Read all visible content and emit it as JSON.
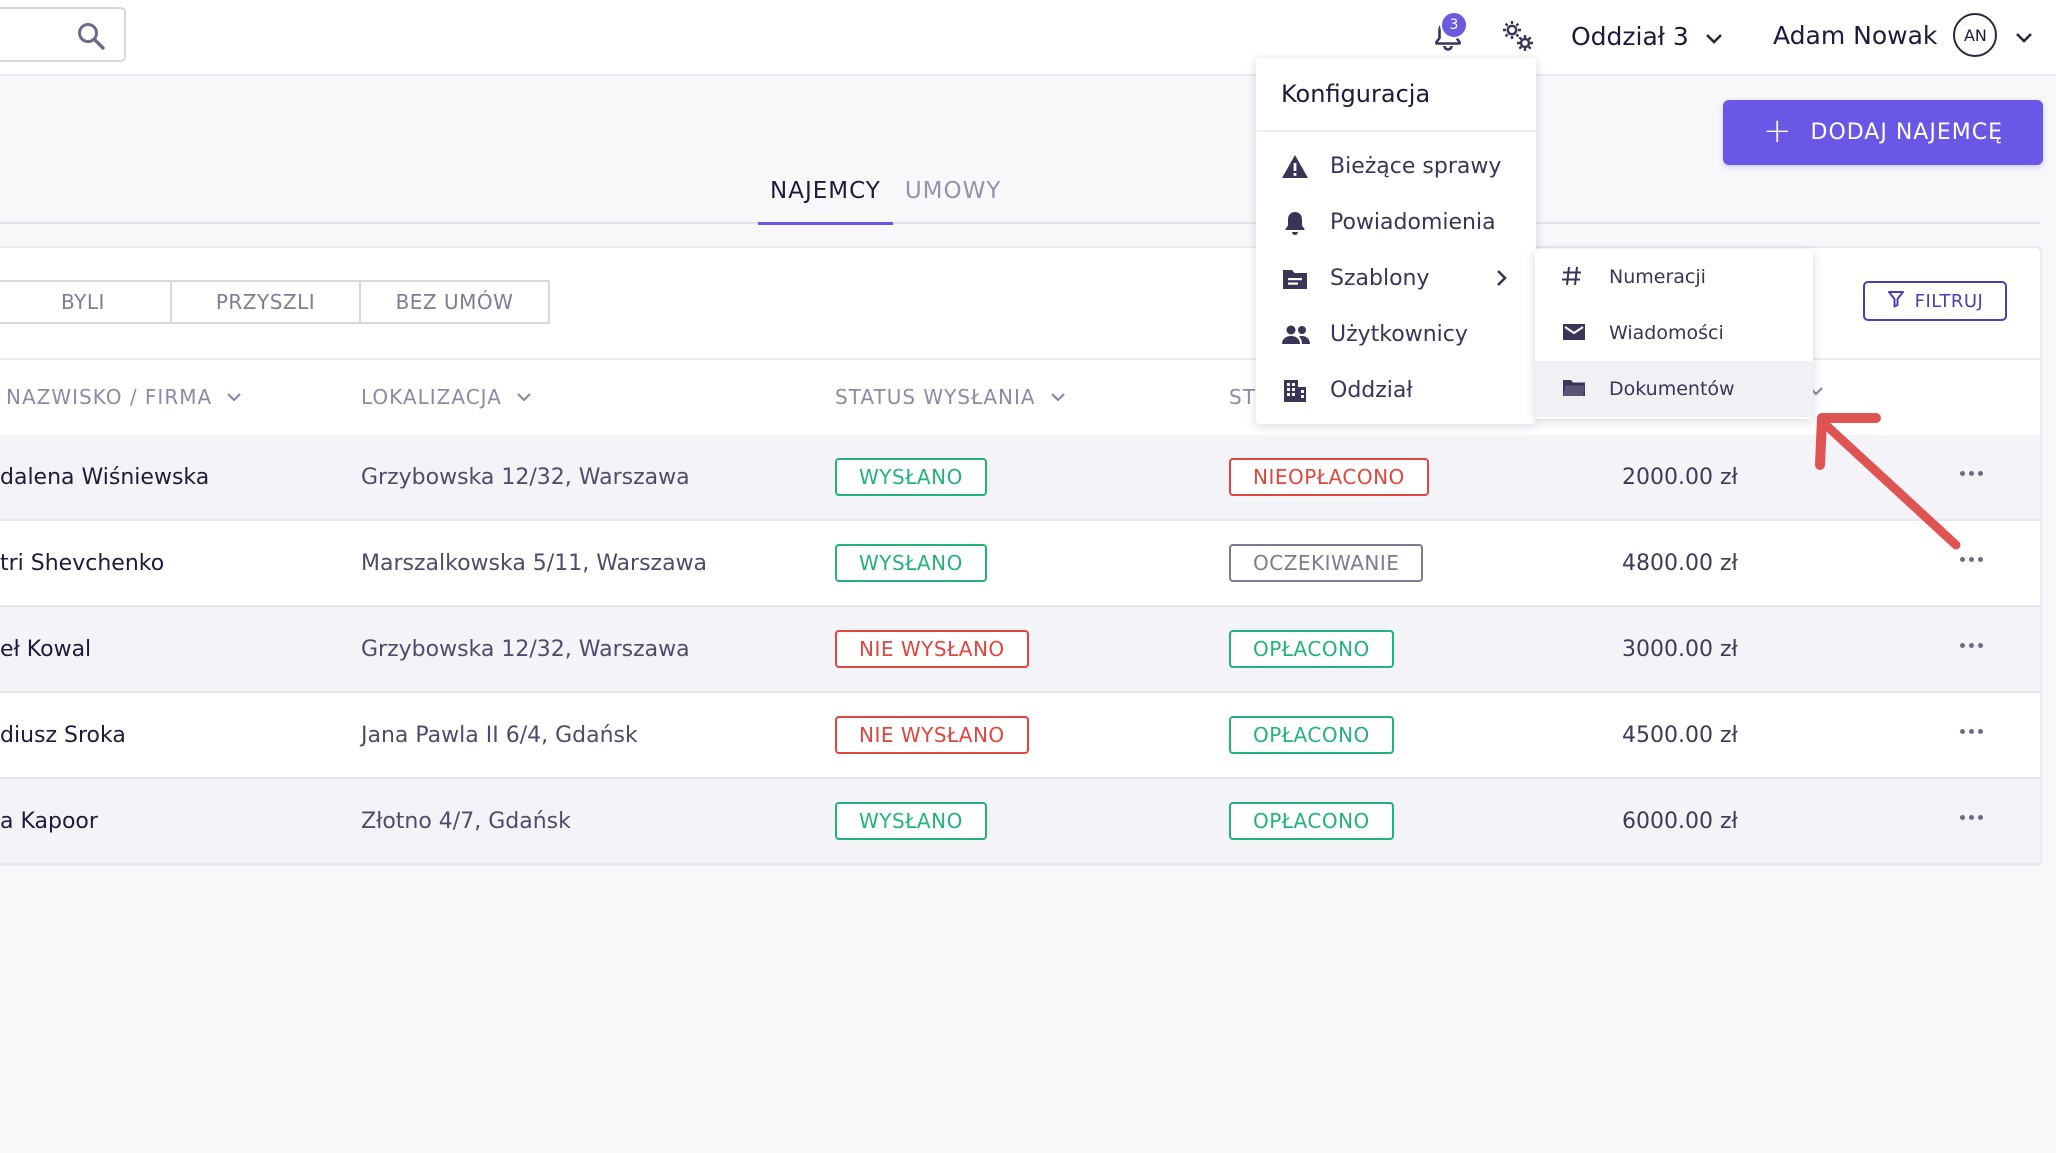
{
  "topbar": {
    "search": {
      "value": "",
      "placeholder": ""
    },
    "notifications_count": "3",
    "branch": "Oddział 3",
    "user_name": "Adam Nowak",
    "user_initials": "AN"
  },
  "add_button_label": "DODAJ NAJEMCĘ",
  "tabs": [
    {
      "label": "NAJEMCY",
      "active": true
    },
    {
      "label": "UMOWY",
      "active": false
    }
  ],
  "segments": [
    "BYLI",
    "PRZYSZLI",
    "BEZ UMÓW"
  ],
  "filter_label": "FILTRUJ",
  "columns": {
    "name": "NAZWISKO / FIRMA",
    "location": "LOKALIZACJA",
    "send_status": "STATUS WYSŁANIA",
    "payment_status_partial": "ST"
  },
  "rows": [
    {
      "name": "dalena Wiśniewska",
      "location": "Grzybowska 12/32, Warszawa",
      "send_status": "WYSŁANO",
      "payment_status": "NIEOPŁACONO",
      "amount": "2000.00 zł"
    },
    {
      "name": "tri Shevchenko",
      "location": "Marszalkowska 5/11, Warszawa",
      "send_status": "WYSŁANO",
      "payment_status": "OCZEKIWANIE",
      "amount": "4800.00 zł"
    },
    {
      "name": "eł Kowal",
      "location": "Grzybowska 12/32, Warszawa",
      "send_status": "NIE WYSŁANO",
      "payment_status": "OPŁACONO",
      "amount": "3000.00 zł"
    },
    {
      "name": "diusz Sroka",
      "location": "Jana Pawla II 6/4, Gdańsk",
      "send_status": "NIE WYSŁANO",
      "payment_status": "OPŁACONO",
      "amount": "4500.00 zł"
    },
    {
      "name": "a Kapoor",
      "location": "Złotno 4/7, Gdańsk",
      "send_status": "WYSŁANO",
      "payment_status": "OPŁACONO",
      "amount": "6000.00 zł"
    }
  ],
  "config_menu": {
    "title": "Konfiguracja",
    "items": [
      "Bieżące sprawy",
      "Powiadomienia",
      "Szablony",
      "Użytkownicy",
      "Oddział"
    ]
  },
  "templates_submenu": {
    "items": [
      "Numeracji",
      "Wiadomości",
      "Dokumentów"
    ],
    "highlighted": "Dokumentów"
  },
  "colors": {
    "accent": "#6b57e6",
    "success": "#21b37a",
    "danger": "#e0463f",
    "neutral": "#7d7a92",
    "annotation_arrow": "#e05353"
  },
  "icons": {
    "search": "search-icon",
    "bell": "bell-icon",
    "gears": "gears-icon",
    "filter": "filter-icon",
    "warning": "warning-icon",
    "folder": "folder-icon"
  }
}
